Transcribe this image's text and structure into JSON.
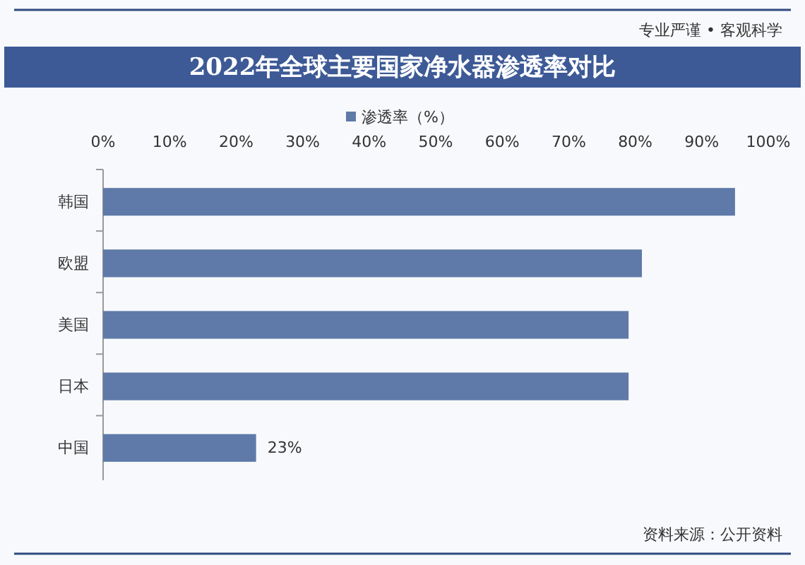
{
  "chart_data": {
    "type": "bar",
    "orientation": "horizontal",
    "title": "2022年全球主要国家净水器渗透率对比",
    "categories": [
      "韩国",
      "欧盟",
      "美国",
      "日本",
      "中国"
    ],
    "series": [
      {
        "name": "渗透率（%）",
        "color": "#5f7aa8",
        "values": [
          95,
          81,
          79,
          79,
          23
        ],
        "value_labels": [
          null,
          null,
          null,
          null,
          "23%"
        ]
      }
    ],
    "xlim": [
      0,
      100
    ],
    "xticks": [
      {
        "value": 0,
        "label": "0%"
      },
      {
        "value": 10,
        "label": "10%"
      },
      {
        "value": 20,
        "label": "20%"
      },
      {
        "value": 30,
        "label": "30%"
      },
      {
        "value": 40,
        "label": "40%"
      },
      {
        "value": 50,
        "label": "50%"
      },
      {
        "value": 60,
        "label": "60%"
      },
      {
        "value": 70,
        "label": "70%"
      },
      {
        "value": 80,
        "label": "80%"
      },
      {
        "value": 90,
        "label": "90%"
      },
      {
        "value": 100,
        "label": "100%"
      }
    ],
    "legend": "top",
    "grid": false,
    "annotations": [
      "专业严谨 • 客观科学",
      "资料来源：公开资料"
    ]
  }
}
